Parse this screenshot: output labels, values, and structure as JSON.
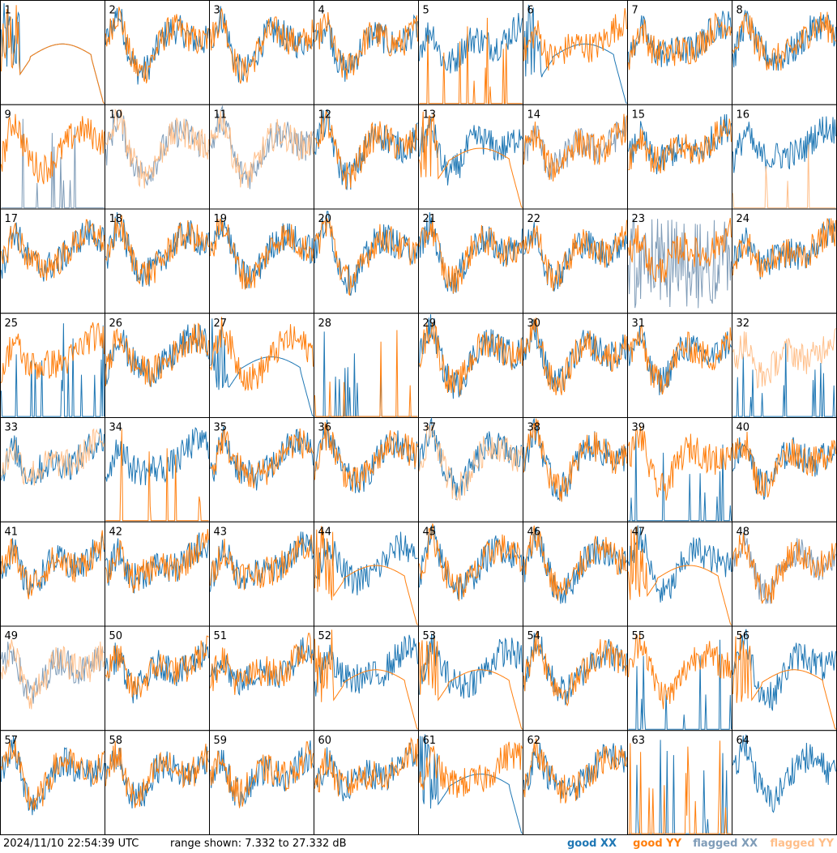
{
  "timestamp": "2024/11/10 22:54:39 UTC",
  "range_text": "range shown: 7.332 to 27.332 dB",
  "legend": {
    "good_xx": "good XX",
    "good_yy": "good YY",
    "flagged_xx": "flagged XX",
    "flagged_yy": "flagged YY"
  },
  "colors": {
    "good_xx": "#1f77b4",
    "good_yy": "#ff7f0e",
    "flagged_xx": "#7f9cb8",
    "flagged_yy": "#ffbf8a"
  },
  "chart_data": {
    "type": "line",
    "grid": {
      "rows": 8,
      "cols": 8
    },
    "ylim": [
      7.332,
      27.332
    ],
    "units": "dB",
    "panels": [
      {
        "id": "1",
        "xx": "flat",
        "yy": "flat"
      },
      {
        "id": "2",
        "xx": "good",
        "yy": "good"
      },
      {
        "id": "3",
        "xx": "good",
        "yy": "good"
      },
      {
        "id": "4",
        "xx": "good",
        "yy": "good"
      },
      {
        "id": "5",
        "xx": "good",
        "yy": "spikes"
      },
      {
        "id": "6",
        "xx": "flat",
        "yy": "good"
      },
      {
        "id": "7",
        "xx": "good",
        "yy": "good"
      },
      {
        "id": "8",
        "xx": "good",
        "yy": "good"
      },
      {
        "id": "9",
        "xx": "flagged_spikes",
        "yy": "good"
      },
      {
        "id": "10",
        "xx": "flagged",
        "yy": "flagged"
      },
      {
        "id": "11",
        "xx": "flagged",
        "yy": "flagged"
      },
      {
        "id": "12",
        "xx": "good",
        "yy": "good"
      },
      {
        "id": "13",
        "xx": "good",
        "yy": "flat"
      },
      {
        "id": "14",
        "xx": "flagged",
        "yy": "good"
      },
      {
        "id": "15",
        "xx": "good",
        "yy": "good"
      },
      {
        "id": "16",
        "xx": "good",
        "yy": "flagged_spikes"
      },
      {
        "id": "17",
        "xx": "good",
        "yy": "good"
      },
      {
        "id": "18",
        "xx": "good",
        "yy": "good"
      },
      {
        "id": "19",
        "xx": "good",
        "yy": "good"
      },
      {
        "id": "20",
        "xx": "good",
        "yy": "good"
      },
      {
        "id": "21",
        "xx": "good",
        "yy": "good"
      },
      {
        "id": "22",
        "xx": "good",
        "yy": "good"
      },
      {
        "id": "23",
        "xx": "flagged_noisy",
        "yy": "good"
      },
      {
        "id": "24",
        "xx": "good",
        "yy": "good"
      },
      {
        "id": "25",
        "xx": "spikes",
        "yy": "good"
      },
      {
        "id": "26",
        "xx": "good",
        "yy": "good"
      },
      {
        "id": "27",
        "xx": "flat",
        "yy": "good"
      },
      {
        "id": "28",
        "xx": "spikes",
        "yy": "spikes"
      },
      {
        "id": "29",
        "xx": "good",
        "yy": "good"
      },
      {
        "id": "30",
        "xx": "good",
        "yy": "good"
      },
      {
        "id": "31",
        "xx": "good",
        "yy": "good"
      },
      {
        "id": "32",
        "xx": "spikes",
        "yy": "flagged"
      },
      {
        "id": "33",
        "xx": "good",
        "yy": "flagged"
      },
      {
        "id": "34",
        "xx": "good",
        "yy": "spikes"
      },
      {
        "id": "35",
        "xx": "good",
        "yy": "good"
      },
      {
        "id": "36",
        "xx": "good",
        "yy": "good"
      },
      {
        "id": "37",
        "xx": "good",
        "yy": "flagged"
      },
      {
        "id": "38",
        "xx": "good",
        "yy": "good"
      },
      {
        "id": "39",
        "xx": "spikes",
        "yy": "good"
      },
      {
        "id": "40",
        "xx": "good",
        "yy": "good"
      },
      {
        "id": "41",
        "xx": "good",
        "yy": "good"
      },
      {
        "id": "42",
        "xx": "good",
        "yy": "good"
      },
      {
        "id": "43",
        "xx": "good",
        "yy": "good"
      },
      {
        "id": "44",
        "xx": "good",
        "yy": "flat"
      },
      {
        "id": "45",
        "xx": "good",
        "yy": "good"
      },
      {
        "id": "46",
        "xx": "good",
        "yy": "good"
      },
      {
        "id": "47",
        "xx": "good",
        "yy": "flat"
      },
      {
        "id": "48",
        "xx": "flagged",
        "yy": "good"
      },
      {
        "id": "49",
        "xx": "flagged",
        "yy": "flagged"
      },
      {
        "id": "50",
        "xx": "good",
        "yy": "good"
      },
      {
        "id": "51",
        "xx": "good",
        "yy": "good"
      },
      {
        "id": "52",
        "xx": "good",
        "yy": "flat"
      },
      {
        "id": "53",
        "xx": "good",
        "yy": "flat"
      },
      {
        "id": "54",
        "xx": "good",
        "yy": "good"
      },
      {
        "id": "55",
        "xx": "spikes",
        "yy": "good"
      },
      {
        "id": "56",
        "xx": "good",
        "yy": "flat"
      },
      {
        "id": "57",
        "xx": "good",
        "yy": "good"
      },
      {
        "id": "58",
        "xx": "good",
        "yy": "good"
      },
      {
        "id": "59",
        "xx": "good",
        "yy": "good"
      },
      {
        "id": "60",
        "xx": "good",
        "yy": "good"
      },
      {
        "id": "61",
        "xx": "flat",
        "yy": "good"
      },
      {
        "id": "62",
        "xx": "good",
        "yy": "good"
      },
      {
        "id": "63",
        "xx": "spikes",
        "yy": "spikes"
      },
      {
        "id": "64",
        "xx": "good",
        "yy": "none"
      }
    ]
  }
}
